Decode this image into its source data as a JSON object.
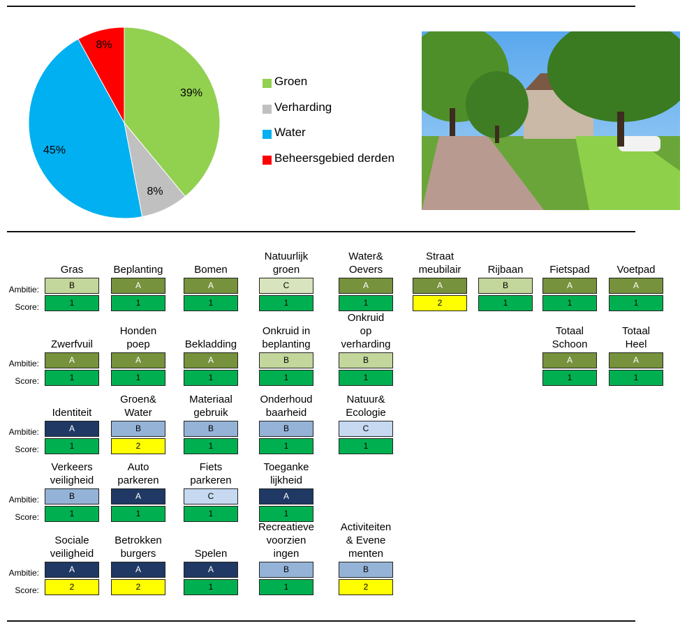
{
  "chart_data": {
    "type": "pie",
    "slices": [
      {
        "label": "Groen",
        "value": 39,
        "color": "#92d050",
        "display": "39%"
      },
      {
        "label": "Verharding",
        "value": 8,
        "color": "#c0c0c0",
        "display": "8%"
      },
      {
        "label": "Water",
        "value": 45,
        "color": "#00b0f0",
        "display": "45%"
      },
      {
        "label": "Beheersgebied derden",
        "value": 8,
        "color": "#ff0000",
        "display": "8%"
      }
    ],
    "legend_position": "right"
  },
  "row_labels": {
    "ambitie": "Ambitie:",
    "score": "Score:"
  },
  "level_colors": {
    "green_A": "#76923c",
    "green_B": "#c3d69b",
    "green_C": "#d7e4bd",
    "blue_A": "#1f3864",
    "blue_B": "#95b3d7",
    "blue_C": "#c6d9f1",
    "score_1": "#00b050",
    "score_2": "#ffff00"
  },
  "groups": [
    {
      "items": [
        {
          "title": "Gras",
          "ambitie": "B",
          "score": "1",
          "theme": "green"
        },
        {
          "title": "Beplanting",
          "ambitie": "A",
          "score": "1",
          "theme": "green"
        },
        {
          "title": "Bomen",
          "ambitie": "A",
          "score": "1",
          "theme": "green"
        },
        {
          "title": "Natuurlijk\ngroen",
          "ambitie": "C",
          "score": "1",
          "theme": "green"
        },
        {
          "title": "Water&\nOevers",
          "ambitie": "A",
          "score": "1",
          "theme": "green"
        },
        {
          "title": "Straat\nmeubilair",
          "ambitie": "A",
          "score": "2",
          "theme": "green"
        },
        {
          "title": "Rijbaan",
          "ambitie": "B",
          "score": "1",
          "theme": "green"
        },
        {
          "title": "Fietspad",
          "ambitie": "A",
          "score": "1",
          "theme": "green"
        },
        {
          "title": "Voetpad",
          "ambitie": "A",
          "score": "1",
          "theme": "green"
        }
      ]
    },
    {
      "items": [
        {
          "title": "Zwerfvuil",
          "ambitie": "A",
          "score": "1",
          "theme": "green"
        },
        {
          "title": "Honden\npoep",
          "ambitie": "A",
          "score": "1",
          "theme": "green"
        },
        {
          "title": "Bekladding",
          "ambitie": "A",
          "score": "1",
          "theme": "green"
        },
        {
          "title": "Onkruid in\nbeplanting",
          "ambitie": "B",
          "score": "1",
          "theme": "green"
        },
        {
          "title": "Onkruid\nop\nverharding",
          "ambitie": "B",
          "score": "1",
          "theme": "green"
        },
        {
          "title": "Totaal\nSchoon",
          "ambitie": "A",
          "score": "1",
          "theme": "green"
        },
        {
          "title": "Totaal\nHeel",
          "ambitie": "A",
          "score": "1",
          "theme": "green"
        }
      ]
    },
    {
      "items": [
        {
          "title": "Identiteit",
          "ambitie": "A",
          "score": "1",
          "theme": "blue"
        },
        {
          "title": "Groen&\nWater",
          "ambitie": "B",
          "score": "2",
          "theme": "blue"
        },
        {
          "title": "Materiaal\ngebruik",
          "ambitie": "B",
          "score": "1",
          "theme": "blue"
        },
        {
          "title": "Onderhoud\nbaarheid",
          "ambitie": "B",
          "score": "1",
          "theme": "blue"
        },
        {
          "title": "Natuur&\nEcologie",
          "ambitie": "C",
          "score": "1",
          "theme": "blue"
        }
      ]
    },
    {
      "items": [
        {
          "title": "Verkeers\nveiligheid",
          "ambitie": "B",
          "score": "1",
          "theme": "blue"
        },
        {
          "title": "Auto\nparkeren",
          "ambitie": "A",
          "score": "1",
          "theme": "blue"
        },
        {
          "title": "Fiets\nparkeren",
          "ambitie": "C",
          "score": "1",
          "theme": "blue"
        },
        {
          "title": "Toeganke\nlijkheid",
          "ambitie": "A",
          "score": "1",
          "theme": "blue"
        }
      ]
    },
    {
      "items": [
        {
          "title": "Sociale\nveiligheid",
          "ambitie": "A",
          "score": "2",
          "theme": "blue"
        },
        {
          "title": "Betrokken\nburgers",
          "ambitie": "A",
          "score": "2",
          "theme": "blue"
        },
        {
          "title": "Spelen",
          "ambitie": "A",
          "score": "1",
          "theme": "blue"
        },
        {
          "title": "Recreatieve\nvoorzien\ningen",
          "ambitie": "B",
          "score": "1",
          "theme": "blue"
        },
        {
          "title": "Activiteiten\n& Evene\nmenten",
          "ambitie": "B",
          "score": "2",
          "theme": "blue"
        }
      ]
    }
  ]
}
